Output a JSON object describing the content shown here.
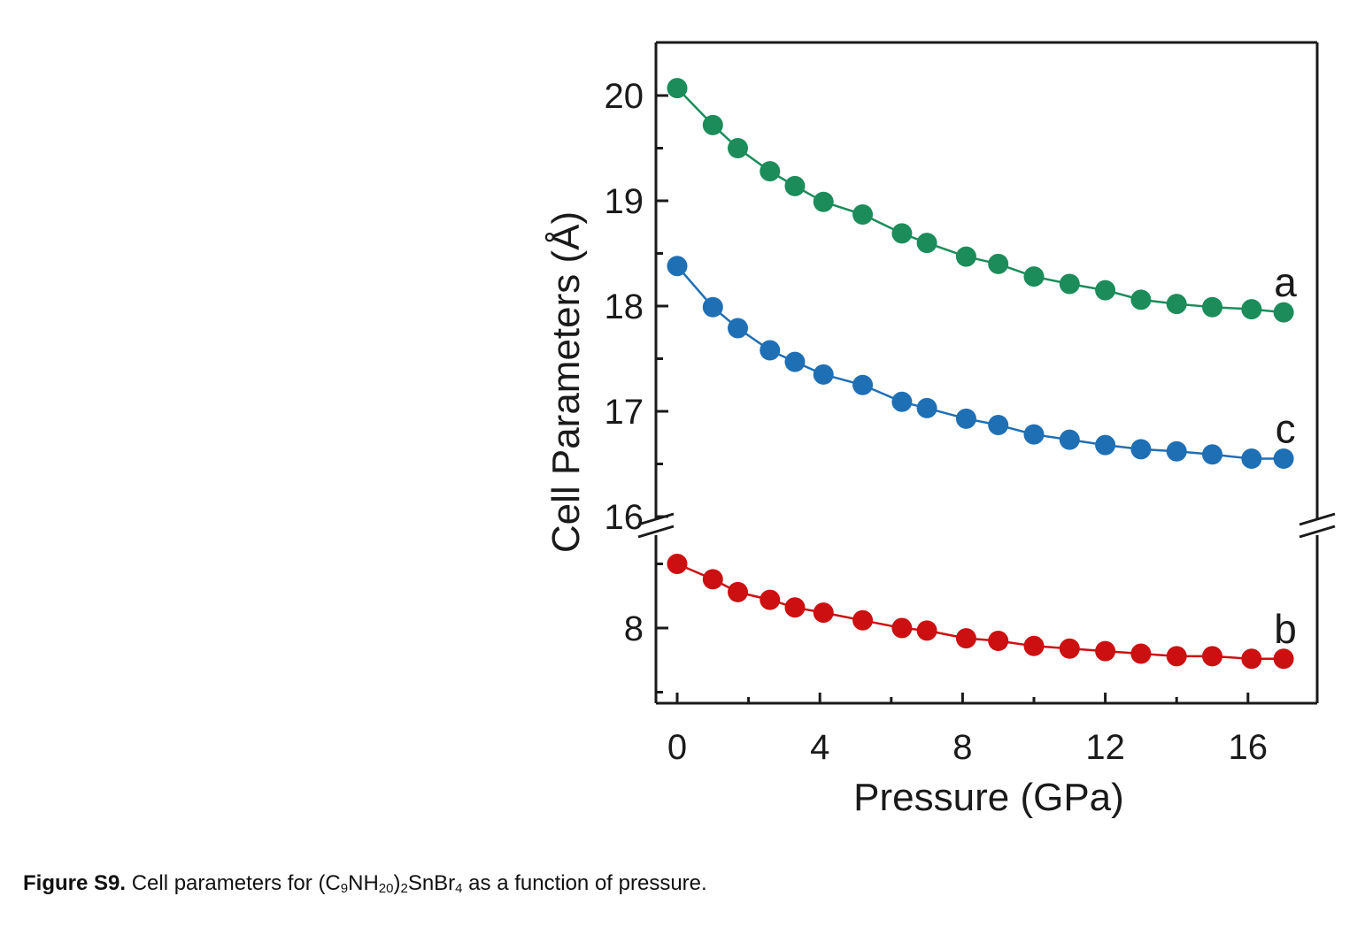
{
  "chart_data": {
    "type": "scatter",
    "xlabel": "Pressure (GPa)",
    "ylabel": "Cell Parameters (Å)",
    "xlim": [
      -0.5,
      18
    ],
    "x_ticks": [
      "0",
      "4",
      "8",
      "12",
      "16"
    ],
    "y_ticks_upper": [
      "20",
      "19",
      "18",
      "17",
      "16"
    ],
    "y_ticks_lower": [
      "8"
    ],
    "ylim_upper": [
      16,
      20.5
    ],
    "ylim_lower": [
      7.4,
      8.6
    ],
    "axis_break": true,
    "grid": false,
    "series": [
      {
        "name": "a",
        "color": "#1b8c5a",
        "panel": "upper",
        "x": [
          0,
          1,
          1.7,
          2.6,
          3.3,
          4.1,
          5.2,
          6.3,
          7,
          8.1,
          9,
          10,
          11,
          12,
          13,
          14,
          15,
          16.1,
          17
        ],
        "y": [
          20.07,
          19.72,
          19.5,
          19.28,
          19.14,
          18.99,
          18.87,
          18.69,
          18.6,
          18.47,
          18.4,
          18.28,
          18.21,
          18.15,
          18.06,
          18.02,
          17.99,
          17.97,
          17.94
        ]
      },
      {
        "name": "c",
        "color": "#1f6fb5",
        "panel": "upper",
        "x": [
          0,
          1,
          1.7,
          2.6,
          3.3,
          4.1,
          5.2,
          6.3,
          7,
          8.1,
          9,
          10,
          11,
          12,
          13,
          14,
          15,
          16.1,
          17
        ],
        "y": [
          18.38,
          17.99,
          17.79,
          17.58,
          17.47,
          17.35,
          17.25,
          17.09,
          17.03,
          16.93,
          16.87,
          16.78,
          16.73,
          16.68,
          16.64,
          16.62,
          16.59,
          16.55,
          16.55
        ]
      },
      {
        "name": "b",
        "color": "#cc0f10",
        "panel": "lower",
        "x": [
          0,
          1,
          1.7,
          2.6,
          3.3,
          4.1,
          5.2,
          6.3,
          7,
          8.1,
          9,
          10,
          11,
          12,
          13,
          14,
          15,
          16.1,
          17
        ],
        "y": [
          8.25,
          8.19,
          8.14,
          8.11,
          8.08,
          8.06,
          8.03,
          8.0,
          7.99,
          7.96,
          7.95,
          7.93,
          7.92,
          7.91,
          7.9,
          7.89,
          7.89,
          7.88,
          7.88
        ]
      }
    ]
  },
  "caption": {
    "label": "Figure S9.",
    "text_before": " Cell parameters for (C",
    "sub1": "9",
    "text_mid1": "NH",
    "sub2": "20",
    "text_mid2": ")",
    "sub3": "2",
    "text_mid3": "SnBr",
    "sub4": "4",
    "text_after": " as a function of pressure."
  }
}
